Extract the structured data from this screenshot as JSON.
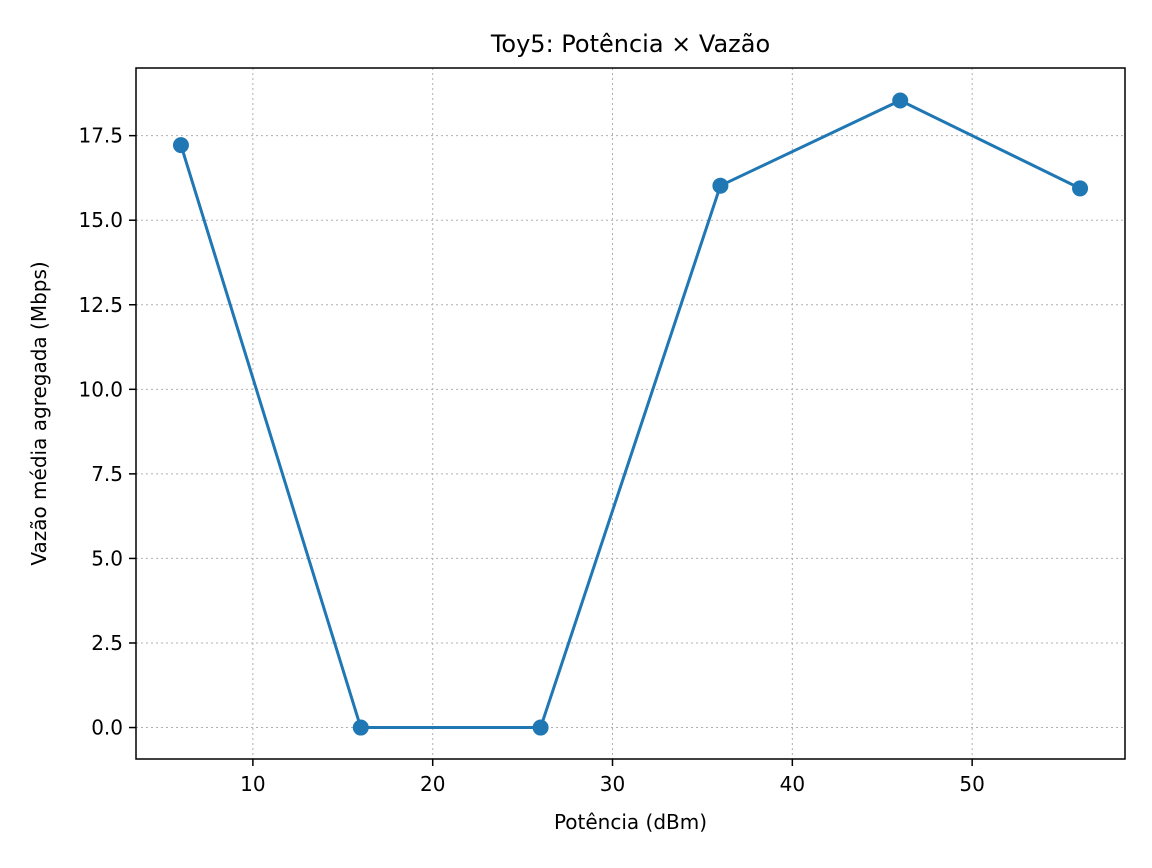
{
  "chart_data": {
    "type": "line",
    "title": "Toy5: Potência × Vazão",
    "xlabel": "Potência (dBm)",
    "ylabel": "Vazão média agregada (Mbps)",
    "xlim": [
      3.5,
      58.5
    ],
    "ylim": [
      -0.93,
      19.5
    ],
    "xticks": [
      10,
      20,
      30,
      40,
      50
    ],
    "xtick_labels": [
      "10",
      "20",
      "30",
      "40",
      "50"
    ],
    "yticks": [
      0,
      2.5,
      5,
      7.5,
      10,
      12.5,
      15,
      17.5
    ],
    "ytick_labels": [
      "0.0",
      "2.5",
      "5.0",
      "7.5",
      "10.0",
      "12.5",
      "15.0",
      "17.5"
    ],
    "grid": true,
    "series": [
      {
        "color": "#1f77b4",
        "marker": "circle",
        "x": [
          6,
          16,
          26,
          36,
          46,
          56
        ],
        "y": [
          17.22,
          0.0,
          0.0,
          16.02,
          18.54,
          15.94
        ]
      }
    ]
  }
}
